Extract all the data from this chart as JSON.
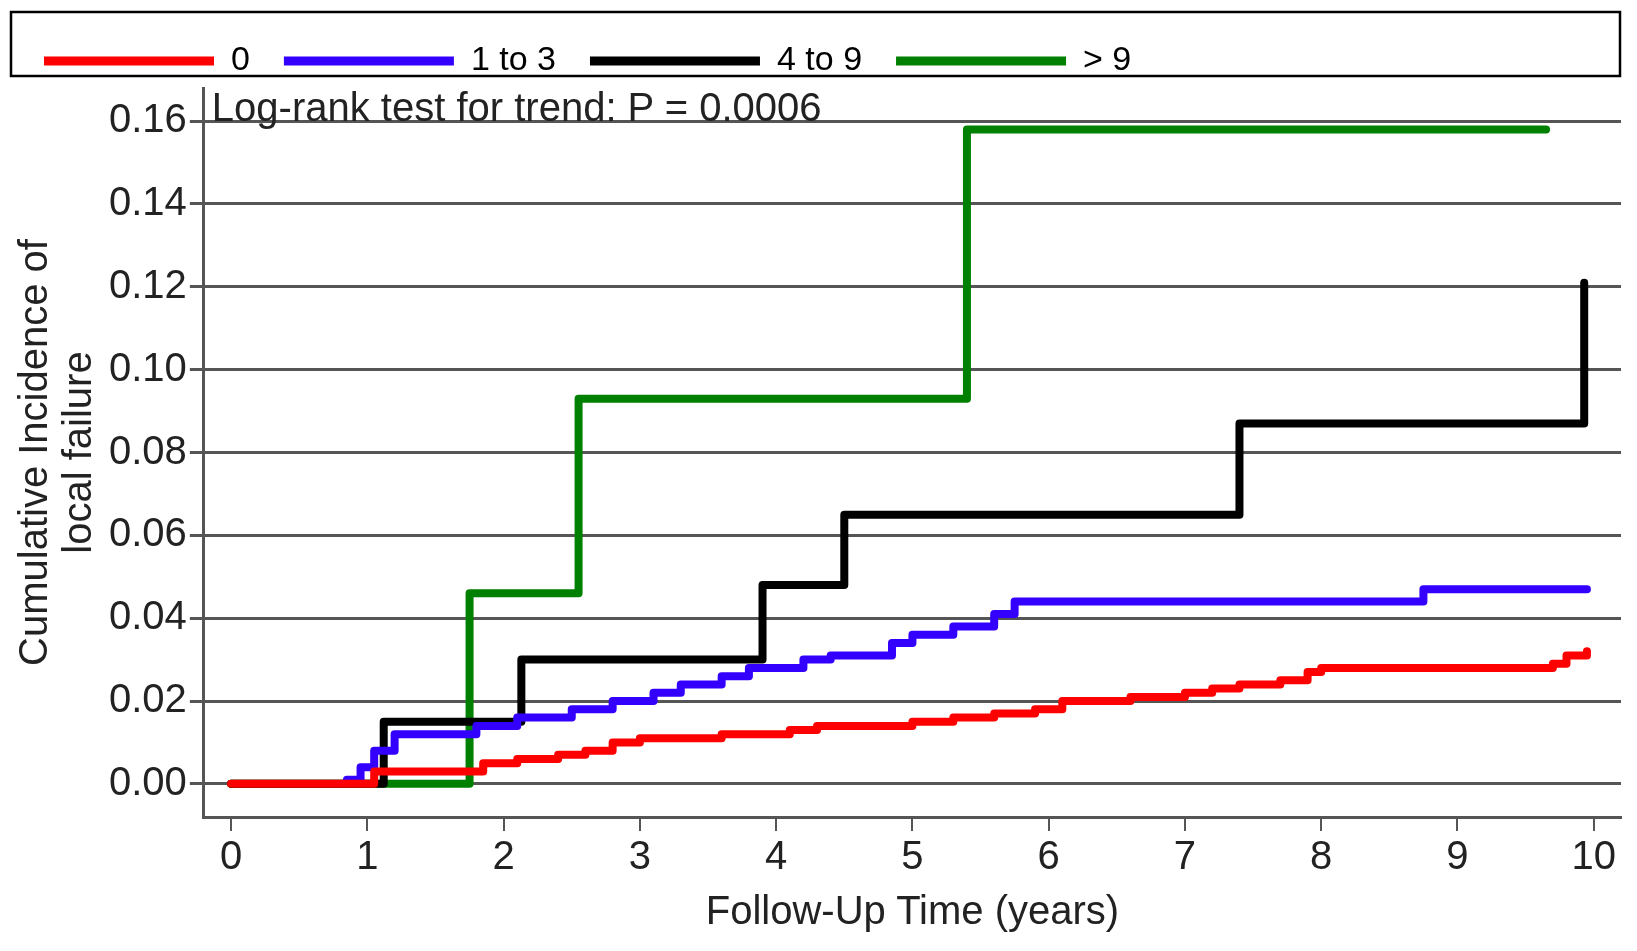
{
  "chart_data": {
    "type": "step",
    "xlabel": "Follow-Up Time (years)",
    "ylabel": "Cumulative Incidence of\nlocal failure",
    "annotations": [
      "Log-rank test for trend: P = 0.0006"
    ],
    "xlim": [
      -0.2,
      10.2
    ],
    "xticks": [
      0,
      1,
      2,
      3,
      4,
      5,
      6,
      7,
      8,
      9,
      10
    ],
    "ylim": [
      -0.008,
      0.168
    ],
    "yticks": [
      {
        "value": 0,
        "label": "0.00"
      },
      {
        "value": 0.02,
        "label": "0.02"
      },
      {
        "value": 0.04,
        "label": "0.04"
      },
      {
        "value": 0.06,
        "label": "0.06"
      },
      {
        "value": 0.08,
        "label": "0.08"
      },
      {
        "value": 0.1,
        "label": "0.10"
      },
      {
        "value": 0.12,
        "label": "0.12"
      },
      {
        "value": 0.14,
        "label": "0.14"
      },
      {
        "value": 0.16,
        "label": "0.16"
      }
    ],
    "grid": "y",
    "legend": "top",
    "line_style": "solid",
    "marker": "none",
    "series": [
      {
        "name": "0",
        "color": "#ff0000",
        "x": [
          0,
          1.05,
          1.85,
          2.1,
          2.4,
          2.6,
          2.8,
          3.0,
          3.6,
          4.1,
          4.3,
          5.0,
          5.3,
          5.6,
          5.9,
          6.1,
          6.6,
          7.0,
          7.2,
          7.4,
          7.7,
          7.9,
          8.0,
          9.7,
          9.8,
          9.95
        ],
        "values": [
          0,
          0.003,
          0.005,
          0.006,
          0.007,
          0.008,
          0.01,
          0.011,
          0.012,
          0.013,
          0.014,
          0.015,
          0.016,
          0.017,
          0.018,
          0.02,
          0.021,
          0.022,
          0.023,
          0.024,
          0.025,
          0.027,
          0.028,
          0.029,
          0.031,
          0.032
        ]
      },
      {
        "name": "1 to 3",
        "color": "#3300ff",
        "x": [
          0.85,
          0.95,
          1.05,
          1.2,
          1.7,
          1.8,
          2.1,
          2.5,
          2.8,
          3.1,
          3.3,
          3.6,
          3.8,
          4.2,
          4.4,
          4.85,
          5.0,
          5.3,
          5.6,
          5.75,
          8.75,
          9.95
        ],
        "values": [
          0.001,
          0.004,
          0.008,
          0.012,
          0.012,
          0.014,
          0.016,
          0.018,
          0.02,
          0.022,
          0.024,
          0.026,
          0.028,
          0.03,
          0.031,
          0.034,
          0.036,
          0.038,
          0.041,
          0.044,
          0.047,
          0.047
        ]
      },
      {
        "name": "4 to 9",
        "color": "#000000",
        "x": [
          0,
          1.12,
          2.13,
          3.9,
          4.5,
          7.4,
          9.93,
          9.93
        ],
        "values": [
          0,
          0.015,
          0.03,
          0.048,
          0.065,
          0.087,
          0.087,
          0.121
        ]
      },
      {
        "name": "> 9",
        "color": "#008000",
        "x": [
          0,
          1.75,
          2.55,
          5.4,
          9.65
        ],
        "values": [
          0,
          0.046,
          0.093,
          0.158,
          0.158
        ]
      }
    ]
  }
}
